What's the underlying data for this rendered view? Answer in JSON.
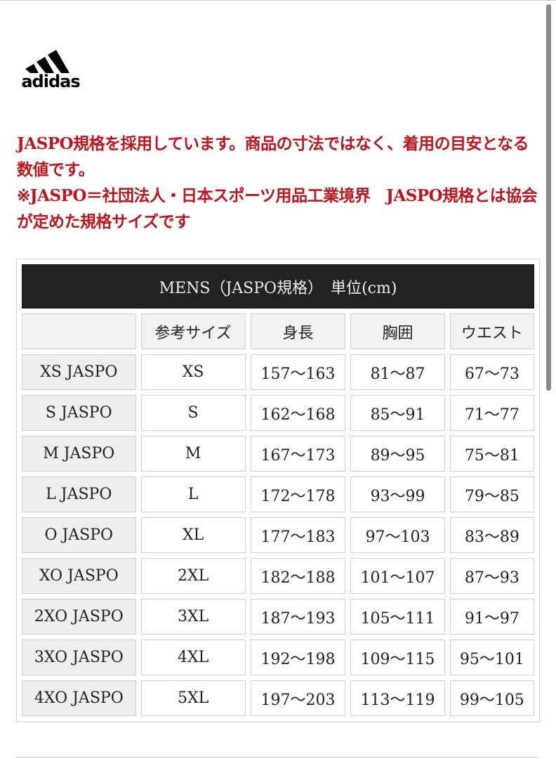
{
  "brand": {
    "logo_text": "adidas"
  },
  "notice": {
    "line1": "JASPO規格を採用しています。商品の寸法ではなく、着用の目安となる数値です。",
    "line2": "※JASPO＝社団法人・日本スポーツ用品工業境界　JASPO規格とは協会が定めた規格サイズです"
  },
  "table": {
    "title": "MENS（JASPO規格）　単位(cm)",
    "headers": [
      "",
      "参考サイズ",
      "身長",
      "胸囲",
      "ウエスト"
    ],
    "rows": [
      [
        "XS JASPO",
        "XS",
        "157〜163",
        "81〜87",
        "67〜73"
      ],
      [
        "S JASPO",
        "S",
        "162〜168",
        "85〜91",
        "71〜77"
      ],
      [
        "M JASPO",
        "M",
        "167〜173",
        "89〜95",
        "75〜81"
      ],
      [
        "L JASPO",
        "L",
        "172〜178",
        "93〜99",
        "79〜85"
      ],
      [
        "O JASPO",
        "XL",
        "177〜183",
        "97〜103",
        "83〜89"
      ],
      [
        "XO JASPO",
        "2XL",
        "182〜188",
        "101〜107",
        "87〜93"
      ],
      [
        "2XO JASPO",
        "3XL",
        "187〜193",
        "105〜111",
        "91〜97"
      ],
      [
        "3XO JASPO",
        "4XL",
        "192〜198",
        "109〜115",
        "95〜101"
      ],
      [
        "4XO JASPO",
        "5XL",
        "197〜203",
        "113〜119",
        "99〜105"
      ]
    ]
  },
  "colors": {
    "notice": "#c0141b",
    "title_bg": "#222222"
  }
}
